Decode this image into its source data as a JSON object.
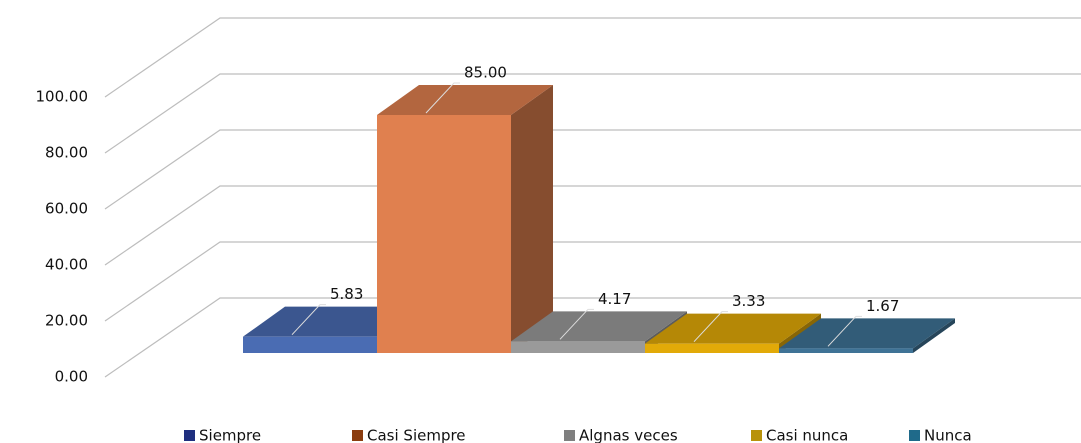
{
  "chart_data": {
    "type": "bar3d",
    "categories": [
      "Siempre",
      "Casi Siempre",
      "Algnas veces",
      "Casi nunca",
      "Nunca"
    ],
    "values": [
      5.83,
      85.0,
      4.17,
      3.33,
      1.67
    ],
    "value_labels": [
      "5.83",
      "85.00",
      "4.17",
      "3.33",
      "1.67"
    ],
    "colors": [
      "#4a6cb3",
      "#e0804f",
      "#9a9a9a",
      "#e2aa08",
      "#3f7396"
    ],
    "legend_colors": [
      "#1f2f7f",
      "#8b3d0f",
      "#7f7f7f",
      "#b8920a",
      "#1f6a8a"
    ],
    "ylim": [
      0,
      100
    ],
    "yticks": [
      {
        "value": 0,
        "label": "0.00"
      },
      {
        "value": 20,
        "label": "20.00"
      },
      {
        "value": 40,
        "label": "40.00"
      },
      {
        "value": 60,
        "label": "60.00"
      },
      {
        "value": 80,
        "label": "80.00"
      },
      {
        "value": 100,
        "label": "100.00"
      }
    ],
    "grid": true,
    "legend": "bottom"
  }
}
